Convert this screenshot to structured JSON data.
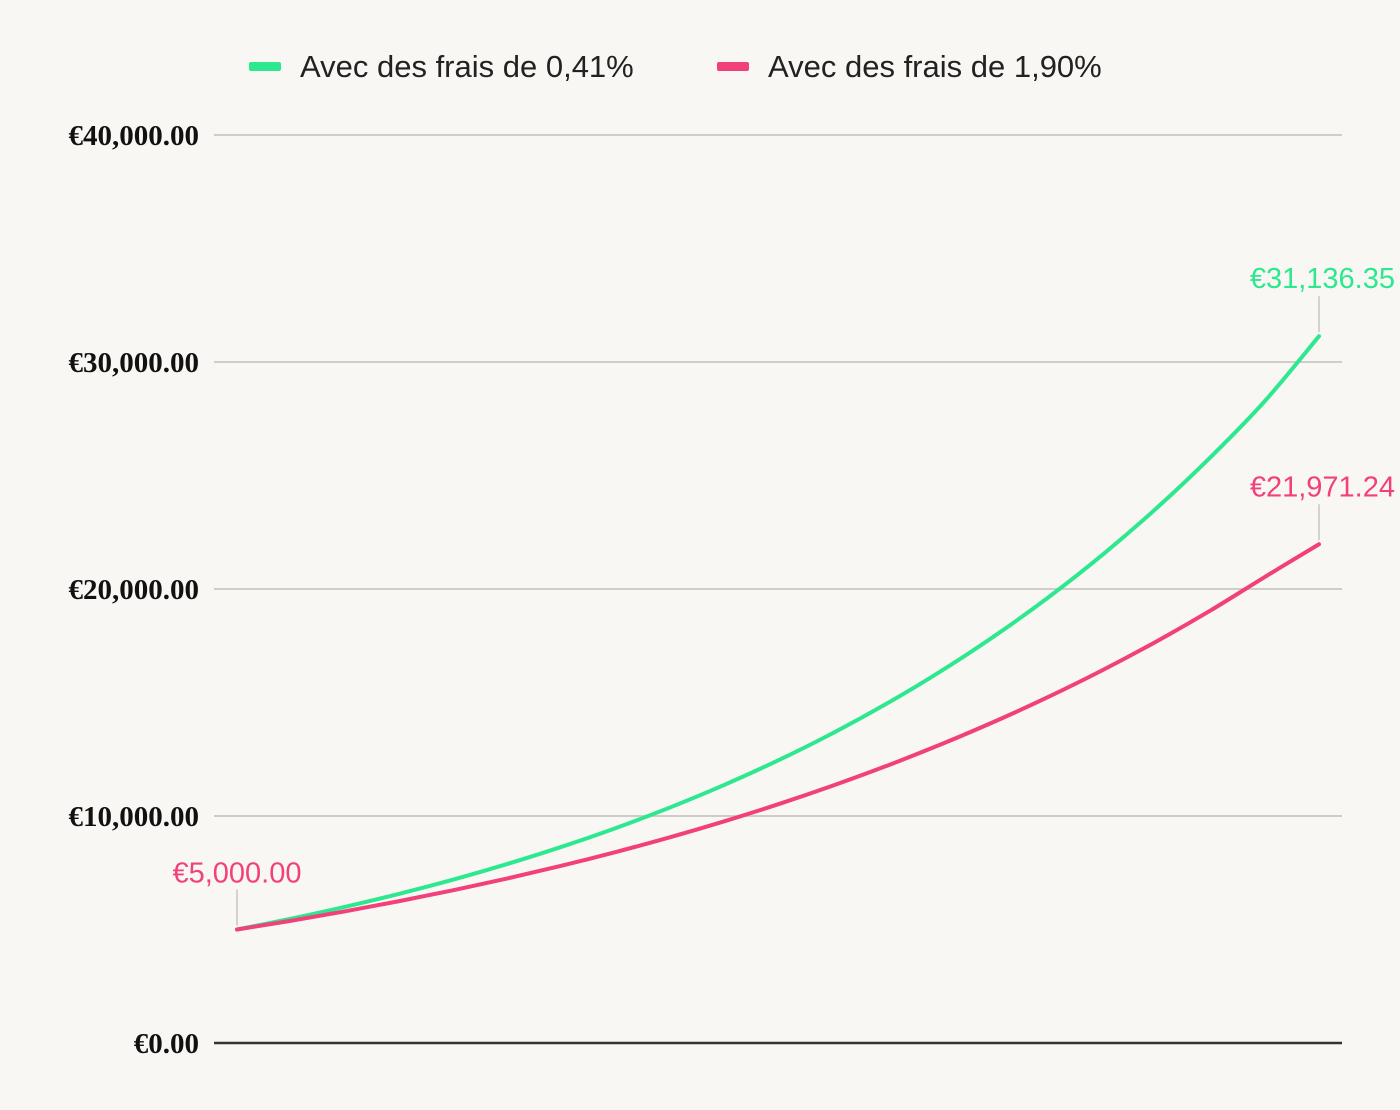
{
  "chart_data": {
    "type": "line",
    "title": "",
    "xlabel": "",
    "ylabel": "",
    "x": [
      0,
      0.05,
      0.1,
      0.15,
      0.2,
      0.25,
      0.3,
      0.35,
      0.4,
      0.45,
      0.5,
      0.55,
      0.6,
      0.65,
      0.7,
      0.75,
      0.8,
      0.85,
      0.9,
      0.95,
      1
    ],
    "ylim": [
      0,
      40000
    ],
    "yticks": [
      {
        "value": 0,
        "label": "€0.00"
      },
      {
        "value": 10000,
        "label": "€10,000.00"
      },
      {
        "value": 20000,
        "label": "€20,000.00"
      },
      {
        "value": 30000,
        "label": "€30,000.00"
      },
      {
        "value": 40000,
        "label": "€40,000.00"
      }
    ],
    "grid": true,
    "legend_position": "top-center",
    "series": [
      {
        "name": "Avec des frais de 0,41%",
        "color": "#2ee88f",
        "values": [
          5000,
          5478,
          6001,
          6574,
          7202,
          7890,
          8643,
          9468,
          10372,
          11362,
          12447,
          13636,
          14938,
          16364,
          17926,
          19638,
          21513,
          23567,
          25817,
          28282,
          31136.35
        ],
        "start_label": "",
        "end_label": "€31,136.35"
      },
      {
        "name": "Avec des frais de 1,90%",
        "color": "#f2407a",
        "values": [
          5000,
          5386,
          5802,
          6249,
          6731,
          7251,
          7810,
          8413,
          9062,
          9762,
          10515,
          11327,
          12201,
          13143,
          14157,
          15250,
          16427,
          17695,
          19061,
          20532,
          21971.24
        ],
        "start_label": "€5,000.00",
        "end_label": "€21,971.24"
      }
    ]
  }
}
